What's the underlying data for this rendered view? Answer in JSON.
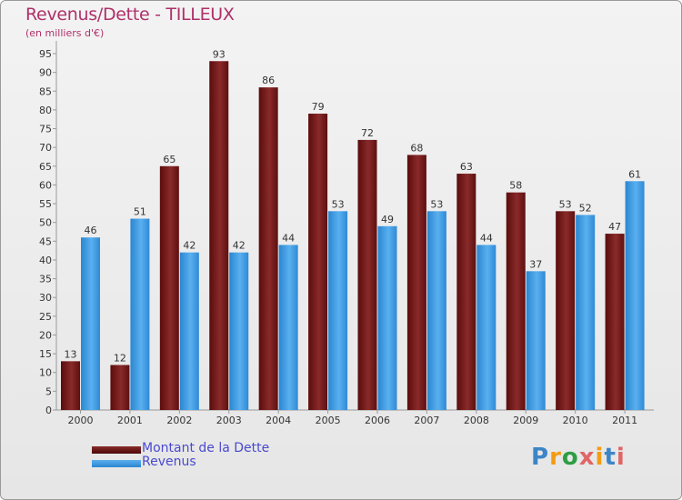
{
  "chart_data": {
    "type": "bar",
    "title": "Revenus/Dette - TILLEUX",
    "subtitle": "(en milliers d'€)",
    "categories": [
      "2000",
      "2001",
      "2002",
      "2003",
      "2004",
      "2005",
      "2006",
      "2007",
      "2008",
      "2009",
      "2010",
      "2011"
    ],
    "series": [
      {
        "name": "Montant de la Dette",
        "values": [
          13,
          12,
          65,
          93,
          86,
          79,
          72,
          68,
          63,
          58,
          53,
          47
        ],
        "color": "#7a1a1a"
      },
      {
        "name": "Revenus",
        "values": [
          46,
          51,
          42,
          42,
          44,
          53,
          49,
          53,
          44,
          37,
          52,
          61
        ],
        "color": "#3a98df"
      }
    ],
    "ylim": [
      0,
      95
    ],
    "yticks": [
      0,
      5,
      10,
      15,
      20,
      25,
      30,
      35,
      40,
      45,
      50,
      55,
      60,
      65,
      70,
      75,
      80,
      85,
      90,
      95
    ],
    "grid": false,
    "legend": "bottom-left"
  },
  "logo": {
    "text": "Proxiti",
    "colors": [
      "#3d85c6",
      "#f39c12",
      "#2e9e44",
      "#e06666",
      "#f39c12",
      "#3d85c6",
      "#e06666"
    ]
  }
}
